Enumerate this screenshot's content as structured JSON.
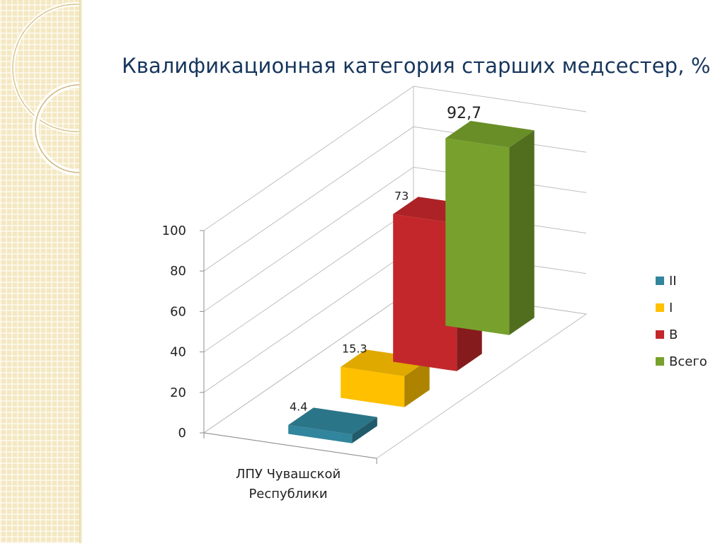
{
  "title": "Квалификационная категория старших медсестер, %",
  "chart_data": {
    "type": "bar",
    "title": "Квалификационная категория старших медсестер, %",
    "categories": [
      "ЛПУ Чувашской Республики"
    ],
    "category_lines": [
      "ЛПУ Чувашской",
      "Республики"
    ],
    "series": [
      {
        "name": "II",
        "values": [
          4.4
        ],
        "label": "4.4",
        "color": "#31859c"
      },
      {
        "name": "I",
        "values": [
          15.3
        ],
        "label": "15.3",
        "color": "#ffc000"
      },
      {
        "name": "В",
        "values": [
          73
        ],
        "label": "73",
        "color": "#c3272b"
      },
      {
        "name": "Всего",
        "values": [
          92.7
        ],
        "label": "92,7",
        "color": "#77a12c"
      }
    ],
    "ylim": [
      0,
      100
    ],
    "yticks": [
      0,
      20,
      40,
      60,
      80,
      100
    ],
    "grid": true,
    "legend": "right",
    "style": "3d-columns-in-depth"
  }
}
